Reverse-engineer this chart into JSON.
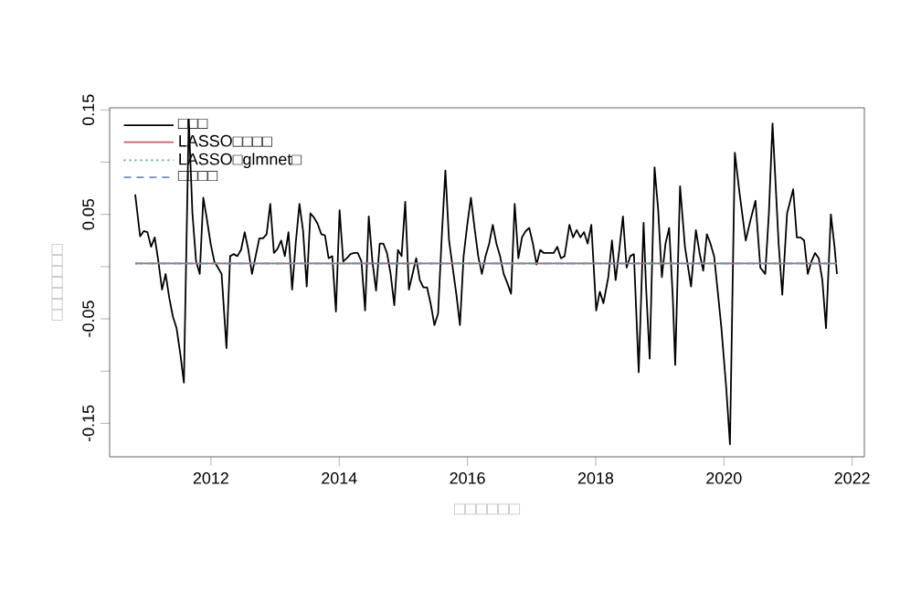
{
  "chart_data": {
    "type": "line",
    "xlabel": "□□□□□□",
    "ylabel": "□□□□□□□",
    "xlim": [
      2010.42,
      2022.19
    ],
    "ylim": [
      -0.182,
      0.152
    ],
    "xticks": [
      2012,
      2014,
      2016,
      2018,
      2020,
      2022
    ],
    "yticks": [
      -0.15,
      {
        "value": -0.1,
        "label": null
      },
      -0.05,
      {
        "value": 0,
        "label": null
      },
      0.05,
      {
        "value": 0.1,
        "label": null
      },
      0.15
    ],
    "legend": "top left",
    "marker": "none",
    "series": [
      {
        "name": "□□□",
        "color": "#000000",
        "line_style": "solid",
        "x": [
          2010.819,
          2010.895,
          2010.952,
          2011.009,
          2011.066,
          2011.123,
          2011.18,
          2011.237,
          2011.293,
          2011.35,
          2011.407,
          2011.464,
          2011.521,
          2011.578,
          2011.654,
          2011.711,
          2011.768,
          2011.825,
          2011.881,
          2011.938,
          2011.995,
          2012.052,
          2012.109,
          2012.166,
          2012.242,
          2012.299,
          2012.356,
          2012.412,
          2012.469,
          2012.526,
          2012.583,
          2012.64,
          2012.697,
          2012.754,
          2012.811,
          2012.868,
          2012.925,
          2012.982,
          2013.038,
          2013.095,
          2013.152,
          2013.209,
          2013.266,
          2013.323,
          2013.38,
          2013.437,
          2013.494,
          2013.551,
          2013.607,
          2013.664,
          2013.721,
          2013.778,
          2013.835,
          2013.892,
          2013.949,
          2014.006,
          2014.063,
          2014.119,
          2014.176,
          2014.233,
          2014.29,
          2014.347,
          2014.404,
          2014.461,
          2014.518,
          2014.575,
          2014.632,
          2014.689,
          2014.745,
          2014.802,
          2014.859,
          2014.916,
          2014.973,
          2015.03,
          2015.087,
          2015.144,
          2015.201,
          2015.257,
          2015.314,
          2015.371,
          2015.428,
          2015.485,
          2015.542,
          2015.599,
          2015.656,
          2015.713,
          2015.77,
          2015.826,
          2015.883,
          2015.94,
          2015.997,
          2016.054,
          2016.111,
          2016.168,
          2016.225,
          2016.282,
          2016.339,
          2016.395,
          2016.452,
          2016.509,
          2016.566,
          2016.623,
          2016.68,
          2016.737,
          2016.794,
          2016.851,
          2016.908,
          2016.964,
          2017.021,
          2017.078,
          2017.135,
          2017.192,
          2017.287,
          2017.344,
          2017.401,
          2017.458,
          2017.515,
          2017.59,
          2017.647,
          2017.704,
          2017.761,
          2017.818,
          2017.875,
          2017.932,
          2018.008,
          2018.065,
          2018.121,
          2018.197,
          2018.254,
          2018.311,
          2018.368,
          2018.425,
          2018.482,
          2018.539,
          2018.596,
          2018.671,
          2018.747,
          2018.785,
          2018.842,
          2018.918,
          2018.975,
          2019.032,
          2019.089,
          2019.146,
          2019.203,
          2019.24,
          2019.316,
          2019.392,
          2019.487,
          2019.563,
          2019.62,
          2019.677,
          2019.734,
          2019.79,
          2019.847,
          2019.904,
          2019.961,
          2020.037,
          2020.094,
          2020.17,
          2020.246,
          2020.34,
          2020.416,
          2020.492,
          2020.568,
          2020.644,
          2020.701,
          2020.758,
          2020.853,
          2020.91,
          2020.985,
          2021.08,
          2021.137,
          2021.194,
          2021.251,
          2021.308,
          2021.365,
          2021.422,
          2021.479,
          2021.535,
          2021.592,
          2021.668,
          2021.725,
          2021.763
        ],
        "values": [
          0.069,
          0.029,
          0.034,
          0.033,
          0.019,
          0.028,
          0.005,
          -0.022,
          -0.007,
          -0.03,
          -0.048,
          -0.059,
          -0.083,
          -0.111,
          0.141,
          0.051,
          0.005,
          -0.007,
          0.066,
          0.045,
          0.022,
          0.005,
          -0.001,
          -0.007,
          -0.078,
          0.01,
          0.012,
          0.01,
          0.016,
          0.033,
          0.016,
          -0.007,
          0.01,
          0.027,
          0.027,
          0.031,
          0.06,
          0.013,
          0.017,
          0.025,
          0.01,
          0.033,
          -0.022,
          0.023,
          0.06,
          0.034,
          -0.019,
          0.051,
          0.047,
          0.041,
          0.031,
          0.03,
          0.008,
          0.01,
          -0.043,
          0.054,
          0.005,
          0.008,
          0.012,
          0.013,
          0.013,
          0.005,
          -0.042,
          0.048,
          0.005,
          -0.023,
          0.022,
          0.022,
          0.013,
          -0.007,
          -0.037,
          0.016,
          0.01,
          0.062,
          -0.022,
          -0.007,
          0.008,
          -0.013,
          -0.02,
          -0.02,
          -0.036,
          -0.056,
          -0.045,
          0.028,
          0.092,
          0.025,
          -0.001,
          -0.026,
          -0.056,
          0.01,
          0.04,
          0.066,
          0.037,
          0.01,
          -0.007,
          0.01,
          0.022,
          0.04,
          0.022,
          0.01,
          -0.007,
          -0.016,
          -0.026,
          0.06,
          0.008,
          0.028,
          0.034,
          0.037,
          0.022,
          0.002,
          0.016,
          0.013,
          0.013,
          0.013,
          0.019,
          0.008,
          0.01,
          0.04,
          0.028,
          0.035,
          0.028,
          0.033,
          0.022,
          0.04,
          -0.042,
          -0.024,
          -0.035,
          -0.01,
          0.025,
          -0.013,
          0.016,
          0.048,
          -0.001,
          0.01,
          0.012,
          -0.101,
          0.042,
          -0.019,
          -0.088,
          0.095,
          0.054,
          -0.01,
          0.022,
          0.037,
          -0.03,
          -0.094,
          0.077,
          0.019,
          -0.019,
          0.035,
          0.013,
          -0.004,
          0.031,
          0.022,
          0.01,
          -0.024,
          -0.059,
          -0.117,
          -0.17,
          0.109,
          0.069,
          0.025,
          0.045,
          0.063,
          -0.001,
          -0.007,
          0.051,
          0.137,
          0.022,
          -0.027,
          0.051,
          0.074,
          0.028,
          0.028,
          0.025,
          -0.007,
          0.005,
          0.013,
          0.008,
          -0.013,
          -0.059,
          0.05,
          0.019,
          -0.007
        ]
      },
      {
        "name": "LASSO□□□□",
        "color": "#c0606a",
        "line_style": "solid",
        "x": [
          2010.819,
          2021.763
        ],
        "values": [
          0.003,
          0.003
        ]
      },
      {
        "name": "LASSO□glmnet□",
        "color": "#4aa0a0",
        "line_style": "dotted",
        "x": [
          2010.819,
          2021.763
        ],
        "values": [
          0.003,
          0.003
        ]
      },
      {
        "name": "□□□□",
        "color": "#7090b8",
        "line_style": "dashed",
        "x": [
          2010.819,
          2021.763
        ],
        "values": [
          0.003,
          0.003
        ]
      }
    ]
  }
}
